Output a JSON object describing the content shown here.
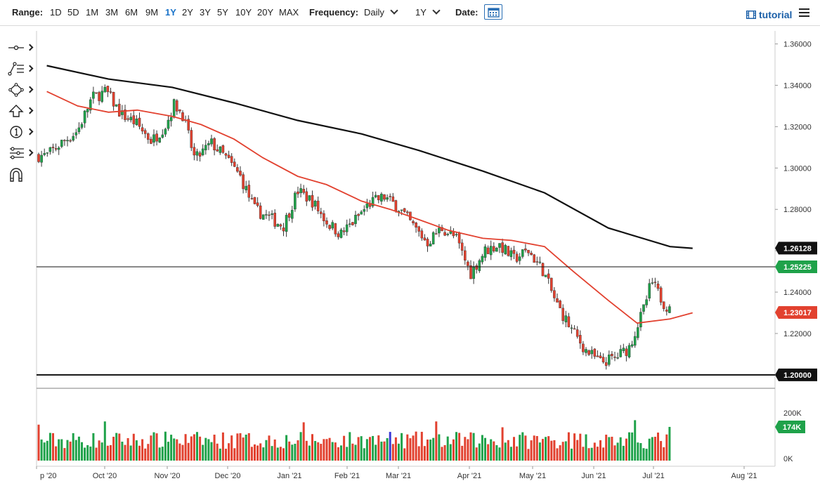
{
  "toolbar": {
    "range_label": "Range:",
    "ranges": [
      "1D",
      "5D",
      "1M",
      "3M",
      "6M",
      "9M",
      "1Y",
      "2Y",
      "3Y",
      "5Y",
      "10Y",
      "20Y",
      "MAX"
    ],
    "active_range": "1Y",
    "frequency_label": "Frequency:",
    "frequency_value": "Daily",
    "period_value": "1Y",
    "date_label": "Date:",
    "tutorial_label": "tutorial"
  },
  "tools": [
    "crosshair-icon",
    "fibonacci-icon",
    "shapes-icon",
    "arrow-up-icon",
    "annotation-number-icon",
    "measure-icon",
    "magnet-icon"
  ],
  "colors": {
    "up_candle": "#1fa24a",
    "down_candle": "#e2412f",
    "ma_fast": "#e2412f",
    "ma_slow": "#111111",
    "price_line": "#111111",
    "tag_price": "#1fa24a",
    "tag_ma_fast": "#e2412f",
    "tag_ma_slow": "#111111",
    "volume_highlight": "#3a3ad6"
  },
  "chart_data": {
    "type": "candlestick",
    "frequency": "Daily",
    "range": "1Y",
    "x_ticks": [
      "p '20",
      "Oct '20",
      "Nov '20",
      "Dec '20",
      "Jan '21",
      "Feb '21",
      "Mar '21",
      "Apr '21",
      "May '21",
      "Jun '21",
      "Jul '21",
      "Aug '21"
    ],
    "y_ticks": [
      "1.36000",
      "1.34000",
      "1.32000",
      "1.30000",
      "1.28000",
      "1.26000",
      "1.24000",
      "1.22000",
      "1.20000"
    ],
    "ylim": [
      1.1935,
      1.3663
    ],
    "price_points": [
      [
        "2020-09-01",
        1.306
      ],
      [
        "2020-09-08",
        1.312
      ],
      [
        "2020-09-16",
        1.318
      ],
      [
        "2020-09-23",
        1.334
      ],
      [
        "2020-09-30",
        1.337
      ],
      [
        "2020-10-07",
        1.326
      ],
      [
        "2020-10-14",
        1.322
      ],
      [
        "2020-10-22",
        1.313
      ],
      [
        "2020-10-29",
        1.321
      ],
      [
        "2020-11-02",
        1.331
      ],
      [
        "2020-11-06",
        1.326
      ],
      [
        "2020-11-12",
        1.304
      ],
      [
        "2020-11-20",
        1.312
      ],
      [
        "2020-11-27",
        1.305
      ],
      [
        "2020-12-04",
        1.296
      ],
      [
        "2020-12-11",
        1.28
      ],
      [
        "2020-12-18",
        1.276
      ],
      [
        "2020-12-25",
        1.272
      ],
      [
        "2021-01-01",
        1.289
      ],
      [
        "2021-01-08",
        1.284
      ],
      [
        "2021-01-15",
        1.274
      ],
      [
        "2021-01-22",
        1.268
      ],
      [
        "2021-01-29",
        1.275
      ],
      [
        "2021-02-05",
        1.283
      ],
      [
        "2021-02-12",
        1.286
      ],
      [
        "2021-02-19",
        1.281
      ],
      [
        "2021-02-26",
        1.272
      ],
      [
        "2021-03-05",
        1.264
      ],
      [
        "2021-03-12",
        1.271
      ],
      [
        "2021-03-19",
        1.266
      ],
      [
        "2021-03-26",
        1.249
      ],
      [
        "2021-04-02",
        1.26
      ],
      [
        "2021-04-09",
        1.263
      ],
      [
        "2021-04-16",
        1.256
      ],
      [
        "2021-04-23",
        1.26
      ],
      [
        "2021-04-30",
        1.251
      ],
      [
        "2021-05-07",
        1.234
      ],
      [
        "2021-05-14",
        1.222
      ],
      [
        "2021-05-21",
        1.212
      ],
      [
        "2021-05-28",
        1.206
      ],
      [
        "2021-06-04",
        1.208
      ],
      [
        "2021-06-11",
        1.213
      ],
      [
        "2021-06-18",
        1.231
      ],
      [
        "2021-06-22",
        1.245
      ],
      [
        "2021-06-29",
        1.233
      ],
      [
        "2021-07-06",
        1.24
      ],
      [
        "2021-07-12",
        1.252
      ]
    ],
    "ma_fast_points": [
      [
        "2020-09-01",
        1.337
      ],
      [
        "2020-09-16",
        1.33
      ],
      [
        "2020-10-01",
        1.327
      ],
      [
        "2020-10-15",
        1.328
      ],
      [
        "2020-11-01",
        1.325
      ],
      [
        "2020-11-15",
        1.321
      ],
      [
        "2020-12-01",
        1.314
      ],
      [
        "2020-12-15",
        1.305
      ],
      [
        "2021-01-01",
        1.296
      ],
      [
        "2021-01-15",
        1.292
      ],
      [
        "2021-02-01",
        1.284
      ],
      [
        "2021-02-15",
        1.28
      ],
      [
        "2021-03-01",
        1.275
      ],
      [
        "2021-03-15",
        1.27
      ],
      [
        "2021-04-01",
        1.266
      ],
      [
        "2021-04-15",
        1.265
      ],
      [
        "2021-05-01",
        1.262
      ],
      [
        "2021-05-15",
        1.25
      ],
      [
        "2021-06-01",
        1.236
      ],
      [
        "2021-06-15",
        1.225
      ],
      [
        "2021-07-01",
        1.227
      ],
      [
        "2021-07-12",
        1.23
      ]
    ],
    "ma_slow_points": [
      [
        "2020-09-01",
        1.3495
      ],
      [
        "2020-10-01",
        1.343
      ],
      [
        "2020-11-01",
        1.339
      ],
      [
        "2020-12-01",
        1.3315
      ],
      [
        "2021-01-01",
        1.323
      ],
      [
        "2021-02-01",
        1.3165
      ],
      [
        "2021-03-01",
        1.3085
      ],
      [
        "2021-04-01",
        1.2985
      ],
      [
        "2021-05-01",
        1.288
      ],
      [
        "2021-06-01",
        1.271
      ],
      [
        "2021-07-01",
        1.262
      ],
      [
        "2021-07-12",
        1.2612
      ]
    ],
    "horizontal_lines": [
      1.2,
      1.25225
    ],
    "price_tags": [
      {
        "label": "1.26128",
        "value": 1.26128,
        "kind": "ma_slow"
      },
      {
        "label": "1.25225",
        "value": 1.25225,
        "kind": "price"
      },
      {
        "label": "1.23017",
        "value": 1.23017,
        "kind": "ma_fast"
      },
      {
        "label": "1.20000",
        "value": 1.2,
        "kind": "level"
      }
    ],
    "volume": {
      "y_ticks": [
        "200K",
        "0K"
      ],
      "ylim": [
        0,
        250000
      ],
      "last_label": "174K",
      "last_value": 174000
    }
  }
}
